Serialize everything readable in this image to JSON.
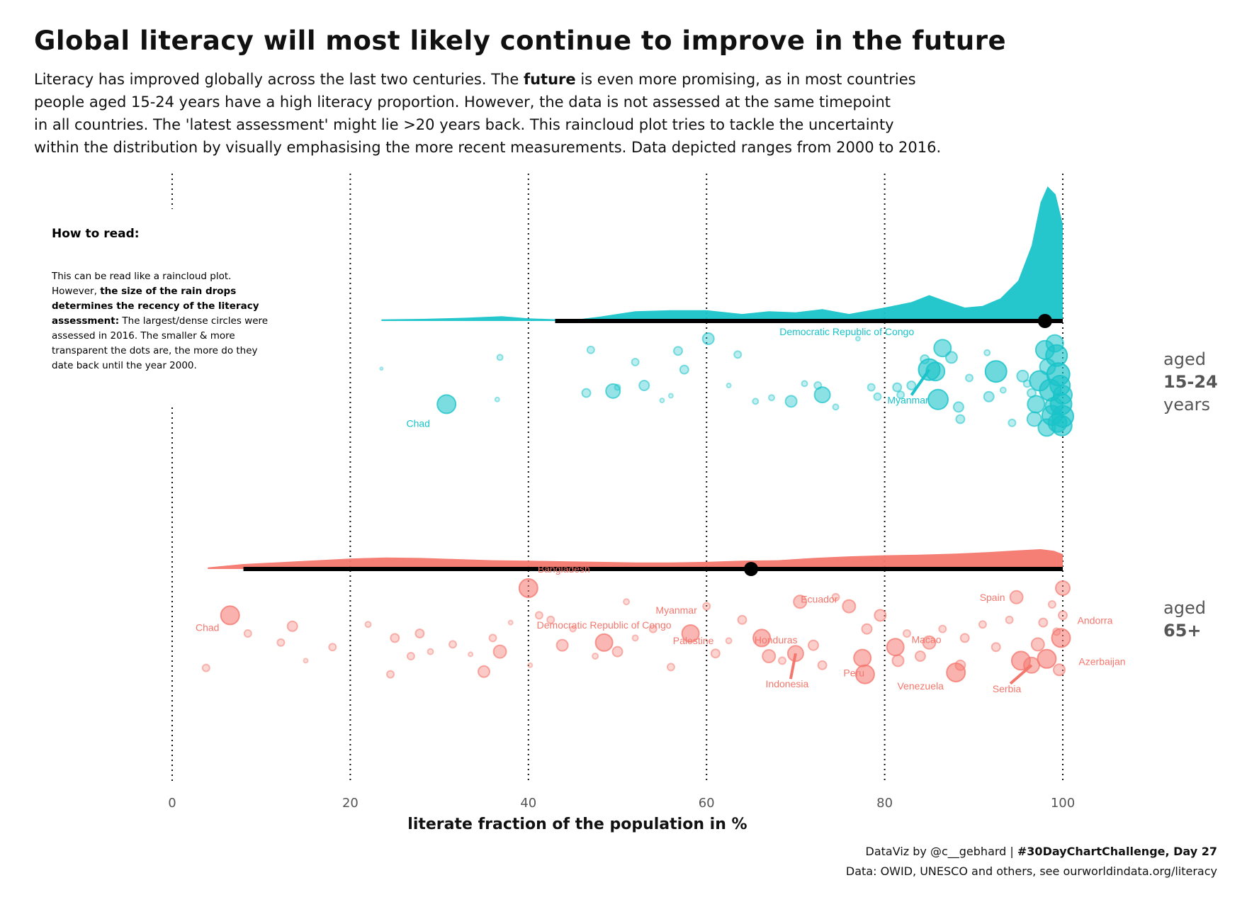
{
  "title": "Global literacy will most likely continue to improve in the future",
  "subtitle": {
    "line1_a": "Literacy has improved globally across the last two centuries. The ",
    "line1_bold": "future",
    "line1_b": " is even more promising, as in most countries",
    "line2": "people aged 15-24 years have a high literacy proportion. However, the data is not assessed at the same timepoint",
    "line3": "in all countries. The 'latest assessment' might lie >20 years back. This raincloud plot tries to tackle the uncertainty",
    "line4": "within the distribution by visually emphasising the more recent measurements. Data depicted ranges from 2000 to 2016."
  },
  "how_to_read": {
    "heading": "How to read:",
    "line1": "This can be read like a raincloud plot.",
    "line2_a": "However, ",
    "line2_bold": "the size of the rain drops",
    "line3_bold": "determines the recency of the literacy",
    "line4_bold": "assessment:",
    "line4_b": " The largest/dense circles were",
    "line5": "assessed in 2016. The smaller & more",
    "line6": "transparent the dots are, the more do they",
    "line7": "date back until the year 2000."
  },
  "footer": {
    "line1_a": "DataViz by @c__gebhard | ",
    "line1_bold": "#30DayChartChallenge, Day 27",
    "line2": "Data: OWID, UNESCO and others, see ourworldindata.org/literacy"
  },
  "colors": {
    "youth": "#19c3c9",
    "elderly": "#f4776e",
    "median": "#000000",
    "grid": "#111111"
  },
  "chart_data": {
    "type": "scatter",
    "subtype": "raincloud",
    "xlabel": "literate fraction of the population in %",
    "xlim": [
      0,
      100
    ],
    "xticks": [
      0,
      20,
      40,
      60,
      80,
      100
    ],
    "grid": "vertical dotted lines at x ticks",
    "series": [
      {
        "name_lines": [
          "aged",
          "15-24",
          "years"
        ],
        "color": "#19c3c9",
        "range": [
          43,
          100
        ],
        "median": 98,
        "density": [
          [
            23.5,
            0.3
          ],
          [
            28,
            0.4
          ],
          [
            33,
            0.6
          ],
          [
            37,
            0.9
          ],
          [
            40,
            0.5
          ],
          [
            45,
            0.2
          ],
          [
            48,
            0.8
          ],
          [
            52,
            1.8
          ],
          [
            56,
            2.0
          ],
          [
            60,
            2.0
          ],
          [
            64,
            1.3
          ],
          [
            67,
            1.8
          ],
          [
            70,
            1.6
          ],
          [
            73,
            2.2
          ],
          [
            76,
            1.3
          ],
          [
            80,
            2.5
          ],
          [
            83,
            3.5
          ],
          [
            85,
            4.8
          ],
          [
            87,
            3.6
          ],
          [
            89,
            2.5
          ],
          [
            91,
            2.8
          ],
          [
            93,
            4.2
          ],
          [
            95,
            7.5
          ],
          [
            96.5,
            14
          ],
          [
            97.5,
            22
          ],
          [
            98.3,
            25
          ],
          [
            99.2,
            23.5
          ],
          [
            100,
            18
          ]
        ],
        "points": [
          [
            23.5,
            0.32,
            2
          ],
          [
            30.8,
            0.7,
            13
          ],
          [
            36.5,
            0.65,
            3
          ],
          [
            36.8,
            0.2,
            4
          ],
          [
            47,
            0.12,
            5
          ],
          [
            46.5,
            0.58,
            6
          ],
          [
            49.5,
            0.56,
            10
          ],
          [
            50,
            0.52,
            4
          ],
          [
            52,
            0.25,
            5
          ],
          [
            53,
            0.5,
            7
          ],
          [
            55,
            0.66,
            3
          ],
          [
            56,
            0.61,
            3
          ],
          [
            56.8,
            0.13,
            6
          ],
          [
            57.5,
            0.33,
            6
          ],
          [
            60.2,
            0.0,
            8
          ],
          [
            62.5,
            0.5,
            3
          ],
          [
            63.5,
            0.17,
            5
          ],
          [
            65.5,
            0.67,
            4
          ],
          [
            67.3,
            0.63,
            4
          ],
          [
            69.5,
            0.67,
            8
          ],
          [
            71,
            0.48,
            4
          ],
          [
            72.5,
            0.5,
            5
          ],
          [
            73,
            0.6,
            11
          ],
          [
            74.5,
            0.73,
            4
          ],
          [
            77,
            0.0,
            3
          ],
          [
            78.5,
            0.52,
            5
          ],
          [
            79.2,
            0.62,
            5
          ],
          [
            81.4,
            0.52,
            6
          ],
          [
            81.8,
            0.6,
            5
          ],
          [
            83,
            0.5,
            6
          ],
          [
            84.5,
            0.22,
            6
          ],
          [
            85,
            0.33,
            15
          ],
          [
            85.7,
            0.35,
            13
          ],
          [
            86,
            0.65,
            14
          ],
          [
            86.5,
            0.1,
            12
          ],
          [
            87.5,
            0.2,
            8
          ],
          [
            88.3,
            0.73,
            7
          ],
          [
            88.5,
            0.86,
            6
          ],
          [
            89.5,
            0.42,
            5
          ],
          [
            91.5,
            0.15,
            4
          ],
          [
            91.7,
            0.62,
            7
          ],
          [
            92.5,
            0.35,
            15
          ],
          [
            93.3,
            0.55,
            4
          ],
          [
            94.3,
            0.9,
            5
          ],
          [
            95.5,
            0.4,
            8
          ],
          [
            96,
            0.48,
            5
          ],
          [
            96.5,
            0.58,
            6
          ],
          [
            96.8,
            0.86,
            10
          ],
          [
            97,
            0.7,
            12
          ],
          [
            97.4,
            0.45,
            14
          ],
          [
            98,
            0.12,
            13
          ],
          [
            98.3,
            0.3,
            11
          ],
          [
            98.6,
            0.55,
            15
          ],
          [
            98.8,
            0.82,
            14
          ],
          [
            99.1,
            0.05,
            12
          ],
          [
            99.3,
            0.18,
            15
          ],
          [
            99.5,
            0.38,
            16
          ],
          [
            99.7,
            0.5,
            14
          ],
          [
            99.8,
            0.7,
            15
          ],
          [
            99.9,
            0.93,
            14
          ],
          [
            100,
            0.83,
            15
          ],
          [
            100,
            0.6,
            13
          ],
          [
            99.4,
            0.9,
            13
          ],
          [
            99.0,
            0.72,
            12
          ],
          [
            98.2,
            0.95,
            12
          ]
        ],
        "labels": [
          {
            "text": "Chad",
            "x": 31,
            "dy": 32,
            "dx": -40,
            "leader": false
          },
          {
            "text": "Democratic Republic of Congo",
            "x": 84,
            "dy": -34,
            "dx": -110,
            "leader": false
          },
          {
            "text": "Myanmar",
            "x": 85.5,
            "dy": 48,
            "dx": -30,
            "leader": true
          }
        ]
      },
      {
        "name_lines": [
          "aged",
          "65+"
        ],
        "color": "#f4776e",
        "range": [
          8,
          100
        ],
        "median": 65,
        "density": [
          [
            4,
            0.3
          ],
          [
            8,
            0.9
          ],
          [
            14,
            1.4
          ],
          [
            20,
            1.9
          ],
          [
            24,
            2.1
          ],
          [
            28,
            2.0
          ],
          [
            32,
            1.8
          ],
          [
            36,
            1.6
          ],
          [
            40,
            1.5
          ],
          [
            44,
            1.4
          ],
          [
            48,
            1.3
          ],
          [
            52,
            1.2
          ],
          [
            56,
            1.2
          ],
          [
            60,
            1.3
          ],
          [
            64,
            1.5
          ],
          [
            68,
            1.6
          ],
          [
            72,
            2.0
          ],
          [
            76,
            2.3
          ],
          [
            80,
            2.5
          ],
          [
            84,
            2.6
          ],
          [
            88,
            2.8
          ],
          [
            92,
            3.1
          ],
          [
            95,
            3.4
          ],
          [
            97.5,
            3.6
          ],
          [
            99,
            3.3
          ],
          [
            100,
            2.7
          ]
        ],
        "points": [
          [
            6.5,
            0.3,
            13
          ],
          [
            3.8,
            0.88,
            5
          ],
          [
            8.5,
            0.5,
            5
          ],
          [
            12.2,
            0.6,
            5
          ],
          [
            13.5,
            0.42,
            7
          ],
          [
            15,
            0.8,
            3
          ],
          [
            18,
            0.65,
            5
          ],
          [
            22,
            0.4,
            4
          ],
          [
            24.5,
            0.95,
            5
          ],
          [
            25,
            0.55,
            6
          ],
          [
            26.8,
            0.75,
            5
          ],
          [
            27.8,
            0.5,
            6
          ],
          [
            29,
            0.7,
            4
          ],
          [
            31.5,
            0.62,
            5
          ],
          [
            33.5,
            0.73,
            3
          ],
          [
            35,
            0.92,
            8
          ],
          [
            36,
            0.55,
            5
          ],
          [
            36.8,
            0.7,
            9
          ],
          [
            38,
            0.38,
            3
          ],
          [
            40,
            0.0,
            13
          ],
          [
            40.2,
            0.85,
            3
          ],
          [
            41.2,
            0.3,
            5
          ],
          [
            42.5,
            0.35,
            5
          ],
          [
            43.8,
            0.63,
            8
          ],
          [
            45,
            0.45,
            4
          ],
          [
            47.5,
            0.75,
            4
          ],
          [
            48.5,
            0.6,
            12
          ],
          [
            50,
            0.7,
            7
          ],
          [
            51,
            0.15,
            4
          ],
          [
            52,
            0.55,
            4
          ],
          [
            54,
            0.45,
            5
          ],
          [
            56,
            0.87,
            5
          ],
          [
            58.2,
            0.5,
            12
          ],
          [
            60,
            0.2,
            5
          ],
          [
            61,
            0.72,
            6
          ],
          [
            62.5,
            0.58,
            4
          ],
          [
            64,
            0.35,
            6
          ],
          [
            66.2,
            0.55,
            12
          ],
          [
            67,
            0.75,
            9
          ],
          [
            68.5,
            0.8,
            5
          ],
          [
            70,
            0.72,
            11
          ],
          [
            70.5,
            0.15,
            9
          ],
          [
            72,
            0.63,
            7
          ],
          [
            73,
            0.85,
            6
          ],
          [
            74.5,
            0.1,
            5
          ],
          [
            76,
            0.2,
            9
          ],
          [
            77.5,
            0.77,
            12
          ],
          [
            77.8,
            0.95,
            13
          ],
          [
            78,
            0.45,
            7
          ],
          [
            79.5,
            0.3,
            8
          ],
          [
            81.2,
            0.65,
            12
          ],
          [
            81.5,
            0.8,
            8
          ],
          [
            82.5,
            0.5,
            5
          ],
          [
            84,
            0.75,
            7
          ],
          [
            85,
            0.6,
            9
          ],
          [
            86.5,
            0.45,
            5
          ],
          [
            88,
            0.93,
            13
          ],
          [
            88.5,
            0.85,
            7
          ],
          [
            89,
            0.55,
            6
          ],
          [
            91,
            0.4,
            5
          ],
          [
            92.5,
            0.65,
            6
          ],
          [
            94,
            0.35,
            5
          ],
          [
            94.8,
            0.1,
            9
          ],
          [
            95.3,
            0.8,
            13
          ],
          [
            96.5,
            0.85,
            11
          ],
          [
            97.2,
            0.62,
            9
          ],
          [
            97.8,
            0.38,
            6
          ],
          [
            98.2,
            0.78,
            13
          ],
          [
            98.8,
            0.18,
            5
          ],
          [
            99.3,
            0.48,
            5
          ],
          [
            99.8,
            0.55,
            13
          ],
          [
            100,
            0.0,
            10
          ],
          [
            99.6,
            0.9,
            8
          ],
          [
            100,
            0.3,
            6
          ]
        ],
        "labels": [
          {
            "text": "Chad",
            "x": 6.5,
            "dy": 22,
            "dx": -32,
            "leader": false
          },
          {
            "text": "Bangladesh",
            "x": 40,
            "dy": -22,
            "dx": 50,
            "leader": false
          },
          {
            "text": "Myanmar",
            "x": 58,
            "dy": -28,
            "dx": -20,
            "leader": false
          },
          {
            "text": "Democratic Republic of Congo",
            "x": 48.5,
            "dy": -20,
            "dx": 0,
            "leader": false
          },
          {
            "text": "Honduras",
            "x": 67,
            "dy": -18,
            "dx": 10,
            "leader": false
          },
          {
            "text": "Macao",
            "x": 82,
            "dy": -25,
            "dx": 40,
            "leader": false
          },
          {
            "text": "Andorra",
            "x": 100,
            "dy": -20,
            "dx": 48,
            "leader": false
          },
          {
            "text": "Azerbaijan",
            "x": 100,
            "dy": 38,
            "dx": 58,
            "leader": false
          },
          {
            "text": "Ecuador",
            "x": 76,
            "dy": -5,
            "dx": -42,
            "leader": false
          },
          {
            "text": "Palestine",
            "x": 63,
            "dy": 5,
            "dx": -50,
            "leader": false
          },
          {
            "text": "Indonesia",
            "x": 70,
            "dy": 48,
            "dx": -12,
            "leader": true
          },
          {
            "text": "Peru",
            "x": 77.8,
            "dy": 26,
            "dx": -12,
            "leader": false
          },
          {
            "text": "Venezuela",
            "x": 88,
            "dy": 24,
            "dx": -50,
            "leader": false
          },
          {
            "text": "Spain",
            "x": 95,
            "dy": 5,
            "dx": -34,
            "leader": false
          },
          {
            "text": "Serbia",
            "x": 96.5,
            "dy": 38,
            "dx": -35,
            "leader": true
          }
        ]
      }
    ]
  }
}
